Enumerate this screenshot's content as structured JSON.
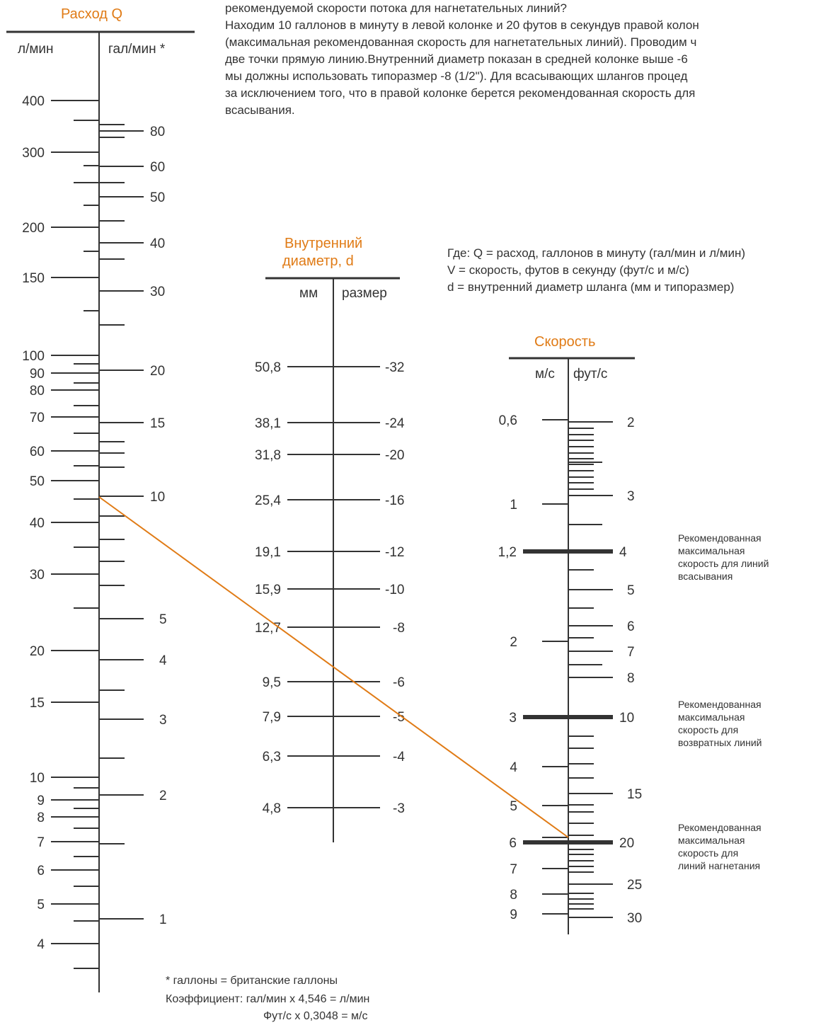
{
  "intro_lines": [
    "рекомендуемой скорости потока для нагнетательных линий?",
    "Находим 10 галлонов в минуту в левой колонке и 20 футов в секундув правой колон",
    "(максимальная рекомендованная скорость для нагнетательных линий). Проводим ч",
    "две точки прямую линию.Внутренний диаметр показан в средней колонке выше -6",
    "мы должны использовать типоразмер -8 (1/2\"). Для всасывающих шлангов процед",
    "за исключением того, что в правой колонке берется рекомендованная скорость для",
    "всасывания."
  ],
  "legend_lines": [
    "Где: Q = расход, галлонов в минуту (гал/мин и л/мин)",
    "V = скорость, футов в секунду (фут/с и м/с)",
    "d = внутренний диаметр шланга (мм и типоразмер)"
  ],
  "flow": {
    "title": "Расход Q",
    "left_unit": "л/мин",
    "right_unit": "гал/мин *",
    "left_labels": [
      "400",
      "300",
      "200",
      "150",
      "100",
      "90",
      "80",
      "70",
      "60",
      "50",
      "40",
      "30",
      "20",
      "15",
      "10",
      "9",
      "8",
      "7",
      "6",
      "5",
      "4"
    ],
    "right_labels": [
      "80",
      "60",
      "50",
      "40",
      "30",
      "20",
      "15",
      "10",
      "5",
      "4",
      "3",
      "2",
      "1"
    ]
  },
  "diameter": {
    "title_line1": "Внутренний",
    "title_line2": "диаметр, d",
    "left_unit": "мм",
    "right_unit": "размер",
    "left_labels": [
      "50,8",
      "38,1",
      "31,8",
      "25,4",
      "19,1",
      "15,9",
      "12,7",
      "9,5",
      "7,9",
      "6,3",
      "4,8"
    ],
    "right_labels": [
      "-32",
      "-24",
      "-20",
      "-16",
      "-12",
      "-10",
      "-8",
      "-6",
      "-5",
      "-4",
      "-3"
    ]
  },
  "speed": {
    "title": "Скорость",
    "left_unit": "м/с",
    "right_unit": "фут/с",
    "left_labels": [
      "0,6",
      "1",
      "1,2",
      "2",
      "3",
      "4",
      "5",
      "6",
      "7",
      "8",
      "9"
    ],
    "right_labels": [
      "2",
      "3",
      "4",
      "5",
      "6",
      "7",
      "8",
      "10",
      "15",
      "20",
      "25",
      "30"
    ]
  },
  "notes": {
    "suction": [
      "Рекомендованная",
      "максимальная",
      "скорость для линий",
      "всасывания"
    ],
    "return": [
      "Рекомендованная",
      "максимальная",
      "скорость для",
      "возвратных линий"
    ],
    "pressure": [
      "Рекомендованная",
      "максимальная",
      "скорость для",
      "линий нагнетания"
    ]
  },
  "footnote": {
    "line1": "* галлоны = британские галлоны",
    "line2": "Коэффициент: гал/мин х 4,546 = л/мин",
    "line3": "Фут/с х 0,3048 = м/с"
  },
  "colors": {
    "accent": "#e07b16",
    "ink": "#333333"
  }
}
